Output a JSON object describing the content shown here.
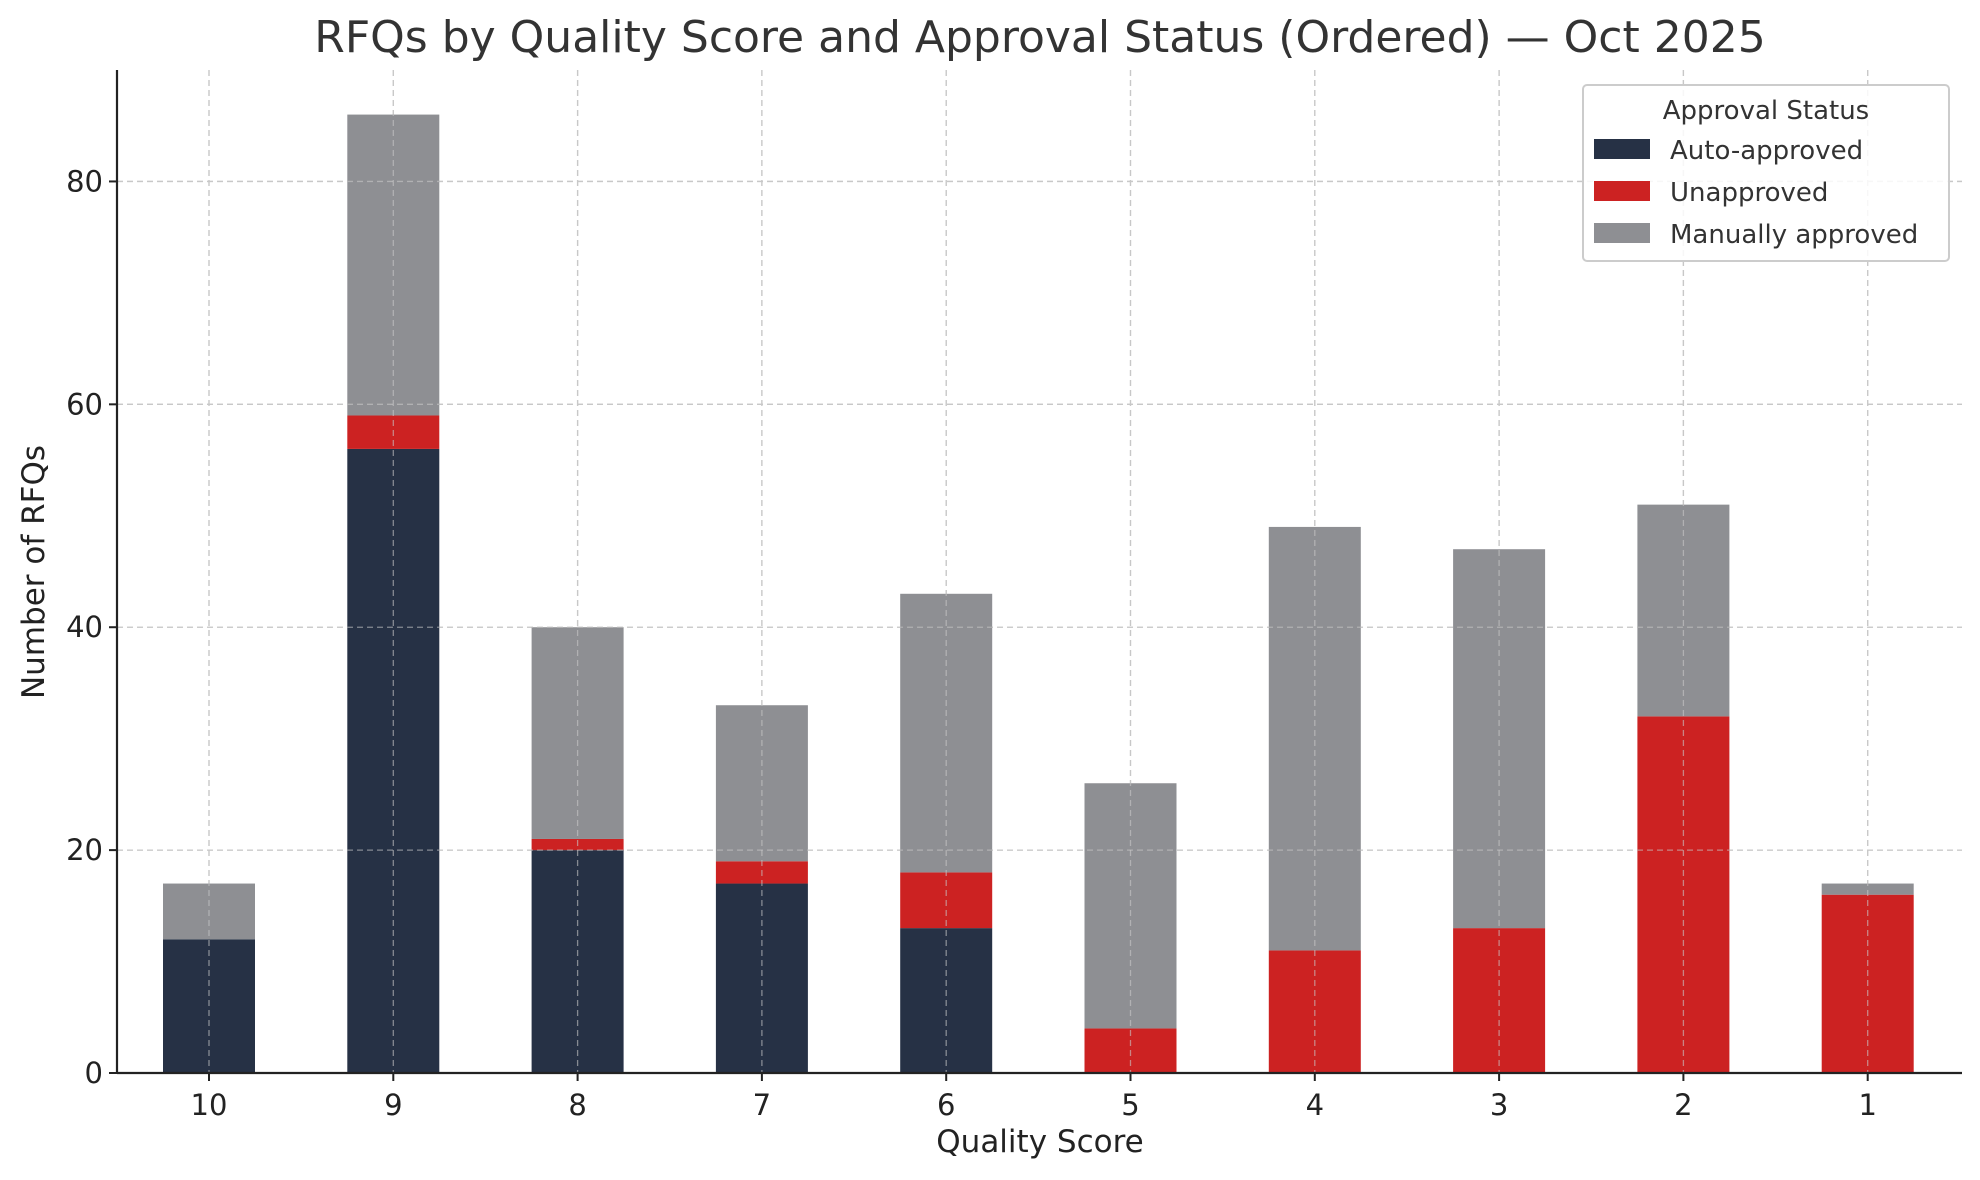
{
  "chart_data": {
    "type": "bar",
    "stacked": true,
    "title": "RFQs by Quality Score and Approval Status (Ordered) — Oct 2025",
    "xlabel": "Quality Score",
    "ylabel": "Number of RFQs",
    "categories": [
      "10",
      "9",
      "8",
      "7",
      "6",
      "5",
      "4",
      "3",
      "2",
      "1"
    ],
    "series": [
      {
        "name": "Auto-approved",
        "color": "#263145",
        "values": [
          12,
          56,
          20,
          17,
          13,
          0,
          0,
          0,
          0,
          0
        ]
      },
      {
        "name": "Unapproved",
        "color": "#cc2222",
        "values": [
          0,
          3,
          1,
          2,
          5,
          4,
          11,
          13,
          32,
          16
        ]
      },
      {
        "name": "Manually approved",
        "color": "#8e8f93",
        "values": [
          5,
          27,
          19,
          14,
          25,
          22,
          38,
          34,
          19,
          1
        ]
      }
    ],
    "ylim": [
      0,
      90
    ],
    "yticks": [
      0,
      20,
      40,
      60,
      80
    ],
    "grid": true,
    "legend": {
      "title": "Approval Status",
      "position": "top-right"
    }
  }
}
